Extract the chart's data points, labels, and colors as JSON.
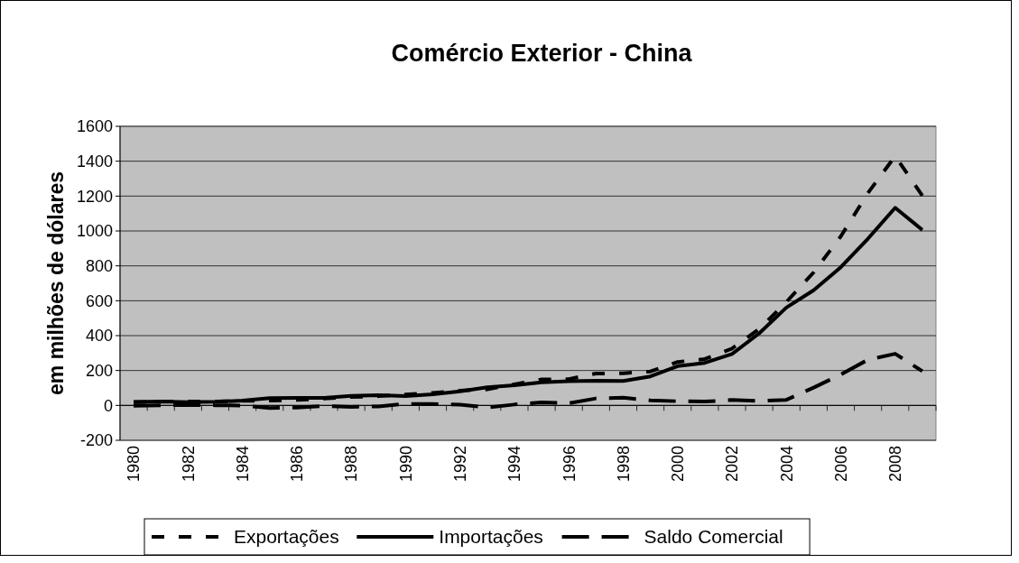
{
  "chart_data": {
    "type": "line",
    "title": "Comércio Exterior - China",
    "ylabel": "em milhões de dólares",
    "categories": [
      "1980",
      null,
      "1982",
      null,
      "1984",
      null,
      "1986",
      null,
      "1988",
      null,
      "1990",
      null,
      "1992",
      null,
      "1994",
      null,
      "1996",
      null,
      "1998",
      null,
      "2000",
      null,
      "2002",
      null,
      "2004",
      null,
      "2006",
      null,
      "2008",
      null
    ],
    "ylim": [
      -200,
      1600
    ],
    "yticks": [
      -200,
      0,
      200,
      400,
      600,
      800,
      1000,
      1200,
      1400,
      1600
    ],
    "grid": "y",
    "legend": "bottom",
    "series": [
      {
        "name": "Exportações",
        "color": "#000000",
        "line_style": "dotted",
        "values": [
          18,
          22,
          22,
          22,
          26,
          27,
          31,
          39,
          48,
          53,
          62,
          72,
          85,
          92,
          121,
          149,
          151,
          183,
          184,
          195,
          249,
          266,
          326,
          438,
          593,
          762,
          969,
          1218,
          1429,
          1202
        ]
      },
      {
        "name": "Importações",
        "color": "#000000",
        "line_style": "solid",
        "values": [
          20,
          22,
          19,
          21,
          27,
          42,
          43,
          43,
          55,
          59,
          53,
          64,
          81,
          104,
          116,
          132,
          139,
          142,
          140,
          166,
          225,
          244,
          295,
          413,
          561,
          660,
          792,
          956,
          1133,
          1006
        ]
      },
      {
        "name": "Saldo Comercial",
        "color": "#000000",
        "line_style": "dashed",
        "values": [
          -2,
          0,
          3,
          1,
          -1,
          -15,
          -12,
          -4,
          -8,
          -6,
          9,
          8,
          4,
          -12,
          5,
          17,
          12,
          40,
          44,
          29,
          24,
          22,
          31,
          25,
          32,
          102,
          177,
          262,
          296,
          196
        ]
      }
    ]
  }
}
